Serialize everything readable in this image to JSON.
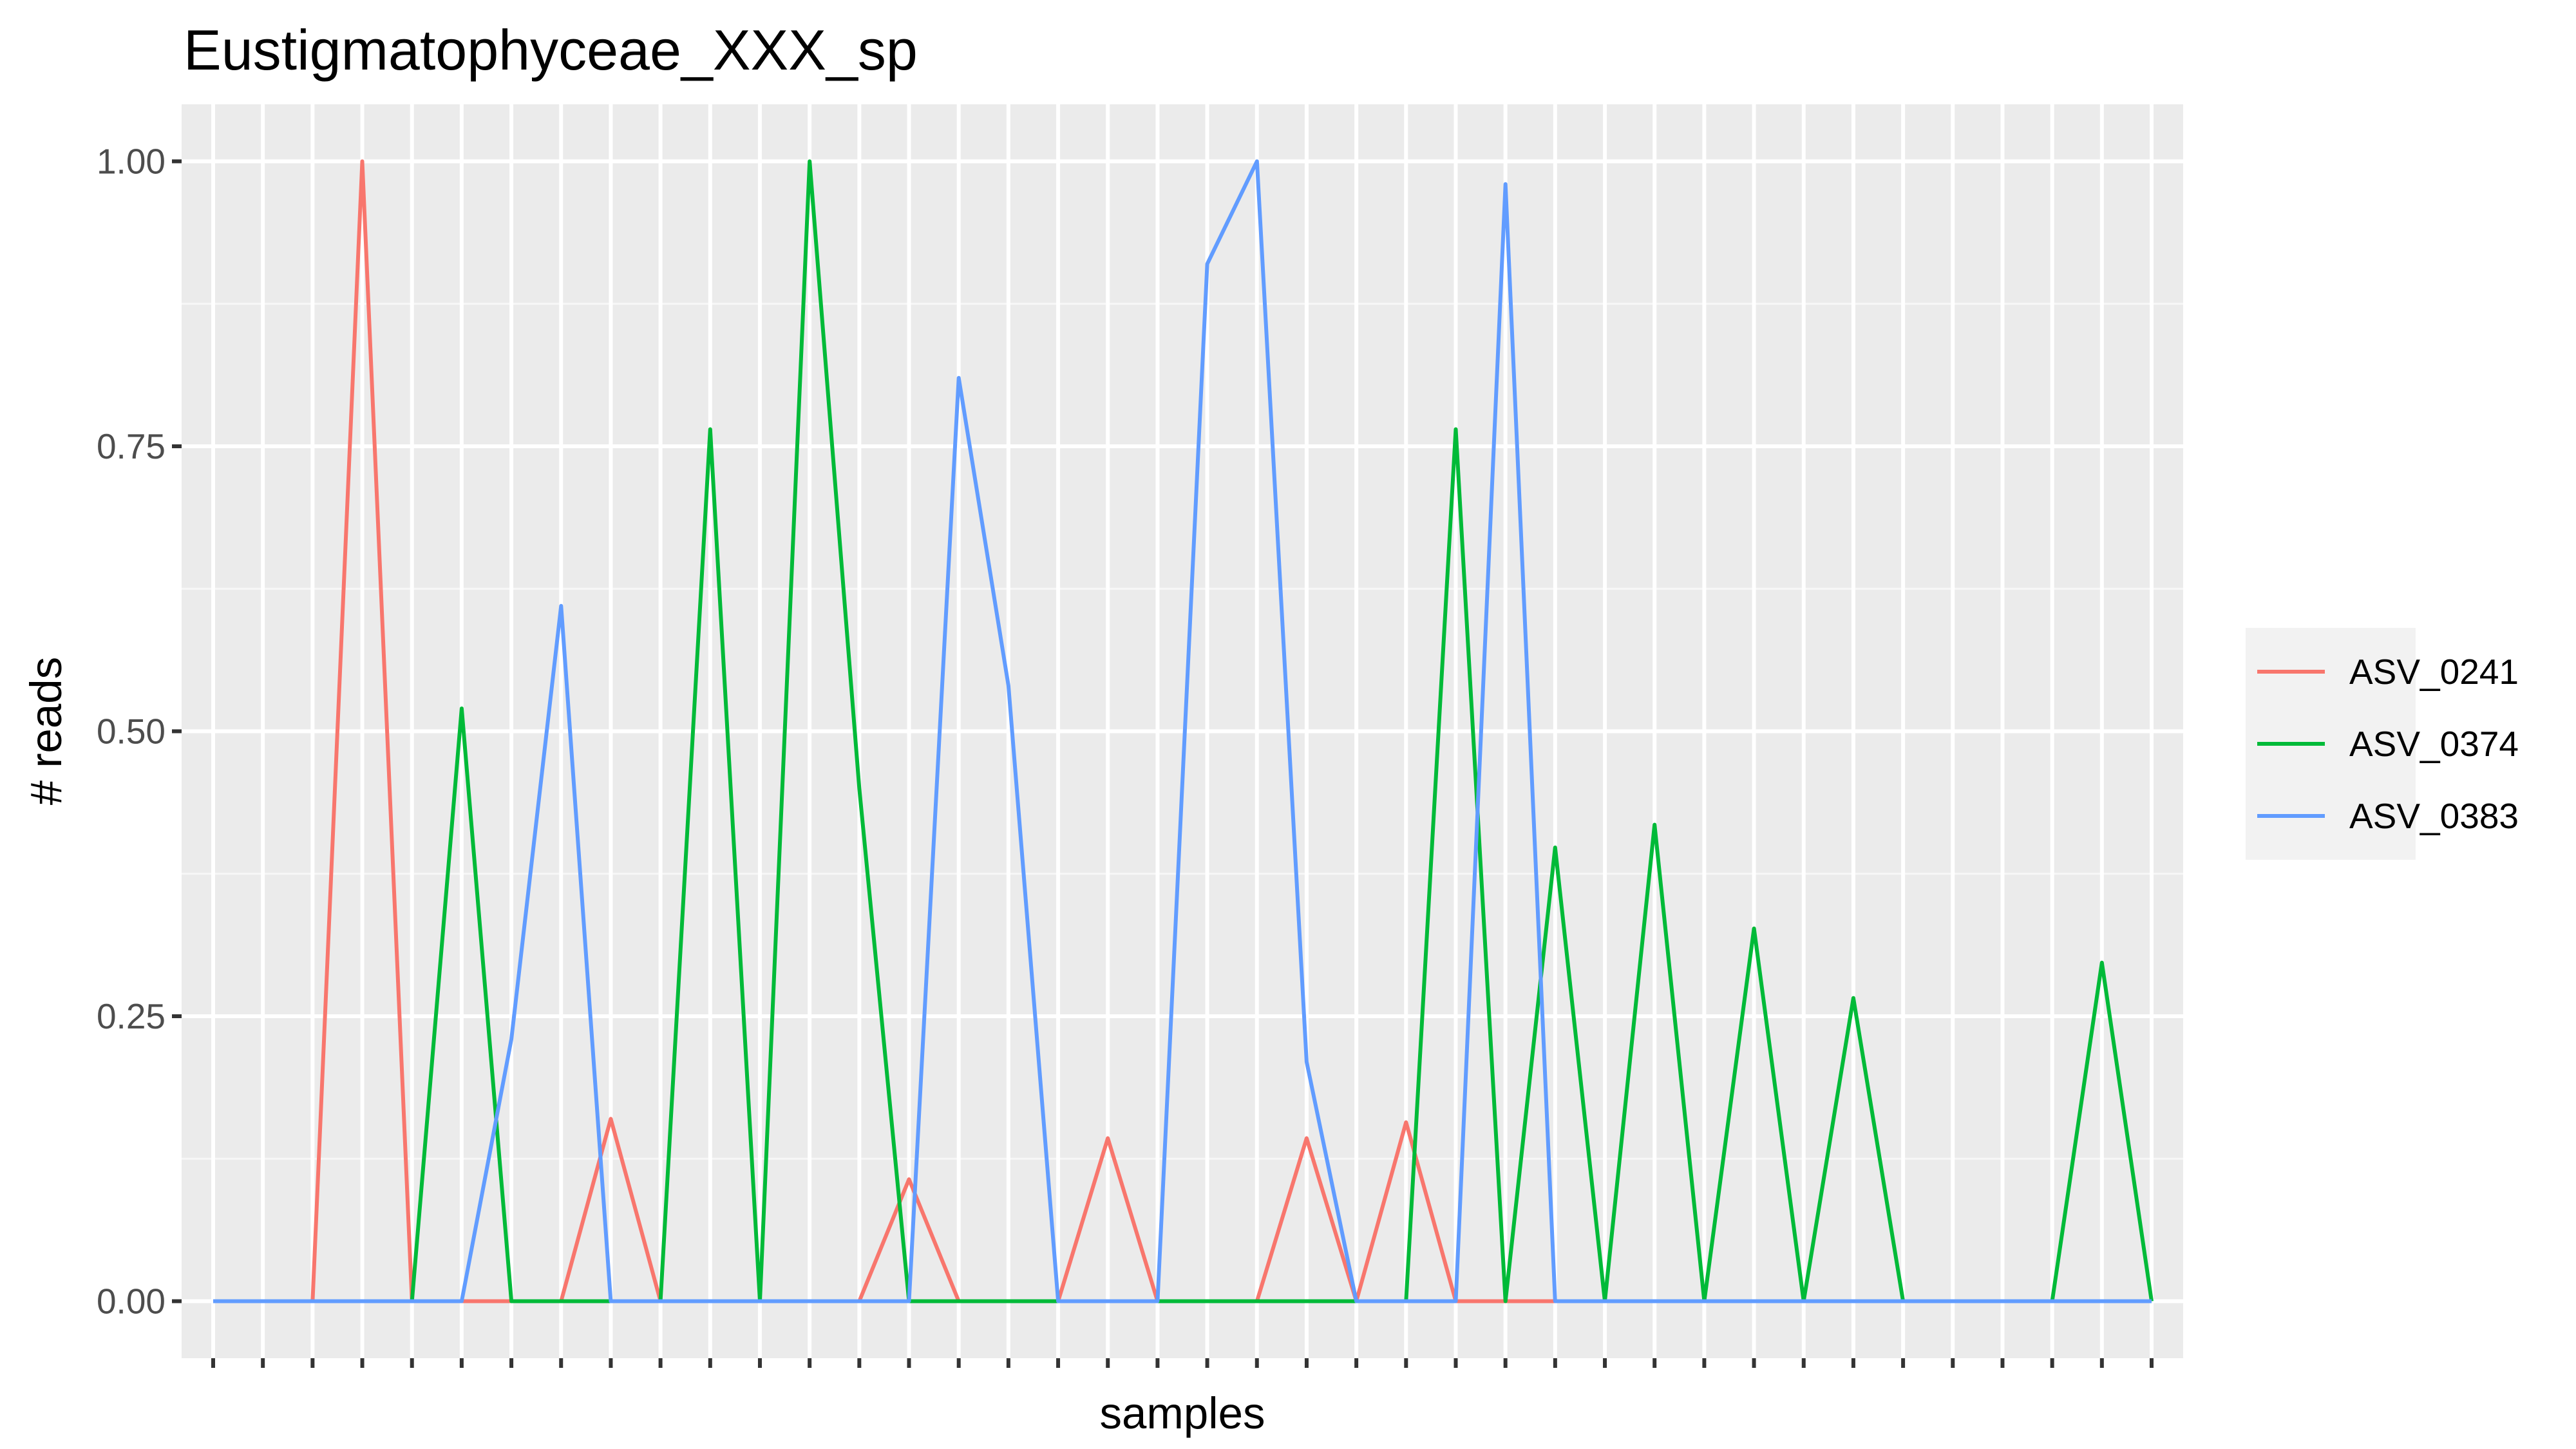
{
  "chart_data": {
    "type": "line",
    "title": "Eustigmatophyceae_XXX_sp",
    "xlabel": "samples",
    "ylabel": "# reads",
    "ylim": [
      -0.05,
      1.05
    ],
    "y_ticks": [
      "0.00",
      "0.25",
      "0.50",
      "0.75",
      "1.00"
    ],
    "x": [
      1,
      2,
      3,
      4,
      5,
      6,
      7,
      8,
      9,
      10,
      11,
      12,
      13,
      14,
      15,
      16,
      17,
      18,
      19,
      20,
      21,
      22,
      23,
      24,
      25,
      26,
      27,
      28,
      29,
      30,
      31,
      32,
      33,
      34,
      35,
      36,
      37,
      38,
      39,
      40
    ],
    "x_tick_labels_shown": false,
    "grid": true,
    "legend_position": "right",
    "series": [
      {
        "name": "ASV_0241",
        "color": "#F8766D",
        "values": [
          0,
          0,
          0,
          1.0,
          0,
          0,
          0,
          0,
          0.16,
          0,
          0,
          0,
          0,
          0,
          0.107,
          0,
          0,
          0,
          0.143,
          0,
          0,
          0,
          0.143,
          0,
          0.157,
          0,
          0,
          0,
          0,
          0,
          0,
          0,
          0,
          0,
          0,
          0,
          0,
          0,
          0,
          0
        ]
      },
      {
        "name": "ASV_0374",
        "color": "#00BA38",
        "values": [
          0,
          0,
          0,
          0,
          0,
          0.52,
          0,
          0,
          0,
          0,
          0.765,
          0,
          1.0,
          0.45,
          0,
          0,
          0,
          0,
          0,
          0,
          0,
          0,
          0,
          0,
          0,
          0.765,
          0,
          0.398,
          0,
          0.418,
          0,
          0.327,
          0,
          0.266,
          0,
          0,
          0,
          0,
          0.297,
          0
        ]
      },
      {
        "name": "ASV_0383",
        "color": "#619CFF",
        "values": [
          0,
          0,
          0,
          0,
          0,
          0,
          0.23,
          0.61,
          0,
          0,
          0,
          0,
          0,
          0,
          0,
          0.81,
          0.54,
          0,
          0,
          0,
          0.91,
          1.0,
          0.21,
          0,
          0,
          0,
          0.98,
          0,
          0,
          0,
          0,
          0,
          0,
          0,
          0,
          0,
          0,
          0,
          0,
          0
        ]
      }
    ]
  }
}
